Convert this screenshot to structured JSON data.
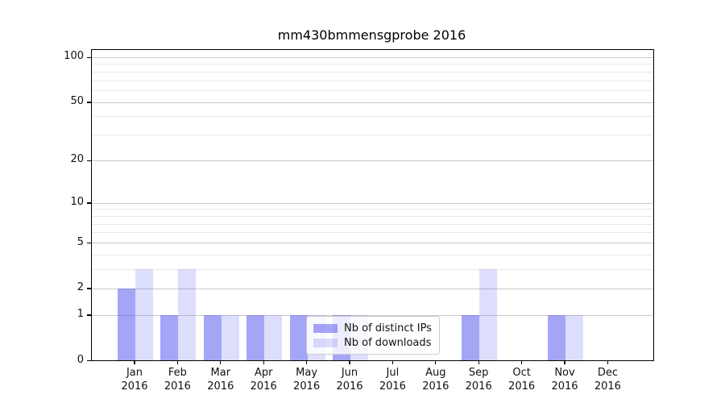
{
  "figure": {
    "title": "mm430bmmensgprobe 2016"
  },
  "chart_data": {
    "type": "bar",
    "title": "mm430bmmensgprobe 2016",
    "categories": [
      "Jan 2016",
      "Feb 2016",
      "Mar 2016",
      "Apr 2016",
      "May 2016",
      "Jun 2016",
      "Jul 2016",
      "Aug 2016",
      "Sep 2016",
      "Oct 2016",
      "Nov 2016",
      "Dec 2016"
    ],
    "category_lines": [
      [
        "Jan",
        "2016"
      ],
      [
        "Feb",
        "2016"
      ],
      [
        "Mar",
        "2016"
      ],
      [
        "Apr",
        "2016"
      ],
      [
        "May",
        "2016"
      ],
      [
        "Jun",
        "2016"
      ],
      [
        "Jul",
        "2016"
      ],
      [
        "Aug",
        "2016"
      ],
      [
        "Sep",
        "2016"
      ],
      [
        "Oct",
        "2016"
      ],
      [
        "Nov",
        "2016"
      ],
      [
        "Dec",
        "2016"
      ]
    ],
    "series": [
      {
        "name": "Nb of distinct IPs",
        "color": "rgba(100,100,240,0.58)",
        "values": [
          2,
          1,
          1,
          1,
          1,
          1,
          0,
          0,
          1,
          0,
          1,
          0
        ]
      },
      {
        "name": "Nb of downloads",
        "color": "rgba(100,100,240,0.22)",
        "values": [
          3,
          3,
          1,
          1,
          1,
          1,
          0,
          0,
          3,
          0,
          1,
          0
        ]
      }
    ],
    "xlabel": "",
    "ylabel": "",
    "yscale": "log1p",
    "ylim": [
      0,
      112
    ],
    "yticks": [
      0,
      1,
      2,
      5,
      10,
      20,
      50,
      100
    ],
    "minor_yticks": [
      3,
      4,
      6,
      7,
      8,
      9,
      30,
      40,
      60,
      70,
      80,
      90
    ],
    "grid": "both",
    "legend_position": "inside lower-center"
  },
  "colors": {
    "bar_distinct_ips": "rgba(100,100,240,0.58)",
    "bar_downloads": "rgba(100,100,240,0.22)",
    "grid_major": "#c9c9c9",
    "grid_minor": "#e9e9e9",
    "axis_line": "#000000",
    "text": "#111111",
    "legend_border": "#cccccc",
    "legend_background": "rgba(255,255,255,0.8)"
  }
}
